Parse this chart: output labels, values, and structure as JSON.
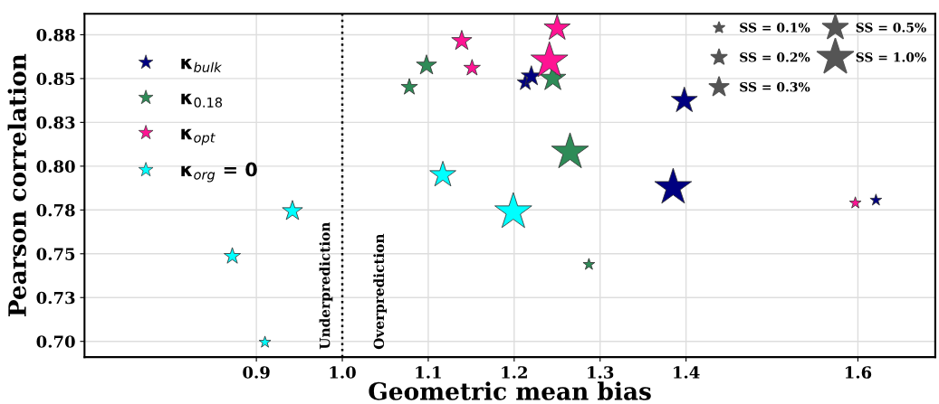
{
  "chart_data": {
    "type": "bubble",
    "xlabel": "Geometric mean bias",
    "ylabel": "Pearson correlation",
    "xlim": [
      0.7,
      1.69
    ],
    "ylim": [
      0.691,
      0.887
    ],
    "xticks": [
      0.9,
      {
        "value": 1.0,
        "label": "1.0"
      },
      1.1,
      1.2,
      1.3,
      1.4,
      1.6
    ],
    "yticks": [
      {
        "value": 0.7,
        "label": "0.70"
      },
      {
        "value": 0.725,
        "label": "0.73"
      },
      0.75,
      {
        "value": 0.775,
        "label": "0.78"
      },
      {
        "value": 0.8,
        "label": "0.80"
      },
      {
        "value": 0.825,
        "label": "0.83"
      },
      0.85,
      {
        "value": 0.875,
        "label": "0.88"
      }
    ],
    "grid": true,
    "marker": "star",
    "legend": "top left",
    "size_legend": [
      {
        "value": 0.1,
        "label": "SS = 0.1%"
      },
      {
        "value": 0.2,
        "label": "SS = 0.2%"
      },
      {
        "value": 0.3,
        "label": "SS = 0.3%"
      },
      {
        "value": 0.5,
        "label": "SS = 0.5%"
      },
      {
        "value": 1.0,
        "label": "SS = 1.0%"
      }
    ],
    "series": [
      {
        "name": "κ$_{bulk}$",
        "color": "#000080",
        "x": [
          1.621,
          1.213,
          1.22,
          1.398,
          1.385
        ],
        "values": [
          0.7806,
          0.8477,
          0.8513,
          0.8374,
          0.7878
        ],
        "sizes": [
          0.1,
          0.2,
          0.3,
          0.5,
          1.0
        ]
      },
      {
        "name": "κ$_{0.18}$",
        "color": "#2e8b57",
        "x": [
          1.287,
          1.078,
          1.098,
          1.245,
          1.265
        ],
        "values": [
          0.7439,
          0.8451,
          0.8575,
          0.85,
          0.808
        ],
        "sizes": [
          0.1,
          0.2,
          0.3,
          0.5,
          1.0
        ]
      },
      {
        "name": "κ$_{opt}$",
        "color": "#ff1493",
        "x": [
          1.597,
          1.151,
          1.139,
          1.25,
          1.241
        ],
        "values": [
          0.779,
          0.856,
          0.8715,
          0.8787,
          0.86
        ],
        "sizes": [
          0.1,
          0.2,
          0.3,
          0.5,
          1.0
        ]
      },
      {
        "name": "κ$_{org}$ = 0",
        "color": "#00ffff",
        "x": [
          0.91,
          0.872,
          0.942,
          1.117,
          1.199
        ],
        "values": [
          0.6995,
          0.7486,
          0.7744,
          0.795,
          0.7739
        ],
        "sizes": [
          0.1,
          0.2,
          0.3,
          0.5,
          1.0
        ]
      }
    ],
    "ref_lines": [
      {
        "axis": "x",
        "value": 1.0,
        "line_style": "dotted",
        "color": "#000000"
      }
    ],
    "annotations": [
      "Underprediction",
      "Overprediction"
    ]
  }
}
